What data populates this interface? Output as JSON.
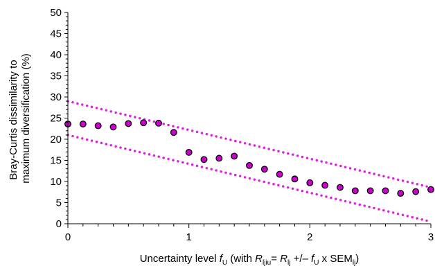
{
  "chart_data": {
    "type": "scatter",
    "ylabel_line1": "Bray-Curtis dissimilarity to",
    "ylabel_line2": "maximum diversification (%)",
    "xlabel": {
      "pre": "Uncertainty level ",
      "f": "f",
      "U_sub": "U",
      "paren_open": " (with ",
      "R1": "R",
      "R1_sub": "ljiu",
      "eq": "= ",
      "R2": "R",
      "R2_sub": "lj",
      "pm": " +/– ",
      "f2": "f",
      "U2_sub": "U",
      "tail": " x SEM",
      "sem_sub": "lj",
      "close": ")"
    },
    "xlim": [
      0,
      3
    ],
    "ylim": [
      0,
      50
    ],
    "x_ticks": [
      "0",
      "1",
      "2",
      "3"
    ],
    "y_ticks": [
      "0",
      "5",
      "10",
      "15",
      "20",
      "25",
      "30",
      "35",
      "40",
      "45",
      "50"
    ],
    "grid": false,
    "legend": "none",
    "series": [
      {
        "marker_color": "#cc00cc",
        "x": [
          0,
          0.125,
          0.25,
          0.375,
          0.5,
          0.625,
          0.75,
          0.875,
          1.0,
          1.125,
          1.25,
          1.375,
          1.5,
          1.625,
          1.75,
          1.875,
          2.0,
          2.125,
          2.25,
          2.375,
          2.5,
          2.625,
          2.75,
          2.875,
          3.0
        ],
        "y": [
          23.6,
          23.6,
          23.2,
          22.9,
          23.7,
          23.9,
          23.8,
          21.6,
          16.9,
          15.2,
          15.5,
          16.0,
          13.8,
          12.9,
          11.7,
          10.6,
          9.7,
          9.1,
          8.6,
          7.8,
          7.8,
          7.8,
          7.2,
          7.6,
          8.1
        ]
      }
    ],
    "bounds": [
      {
        "line_color": "#e020e0",
        "x": [
          0,
          3
        ],
        "y": [
          29,
          8.6
        ]
      },
      {
        "line_color": "#e020e0",
        "x": [
          0,
          3
        ],
        "y": [
          21,
          0.5
        ]
      }
    ]
  }
}
